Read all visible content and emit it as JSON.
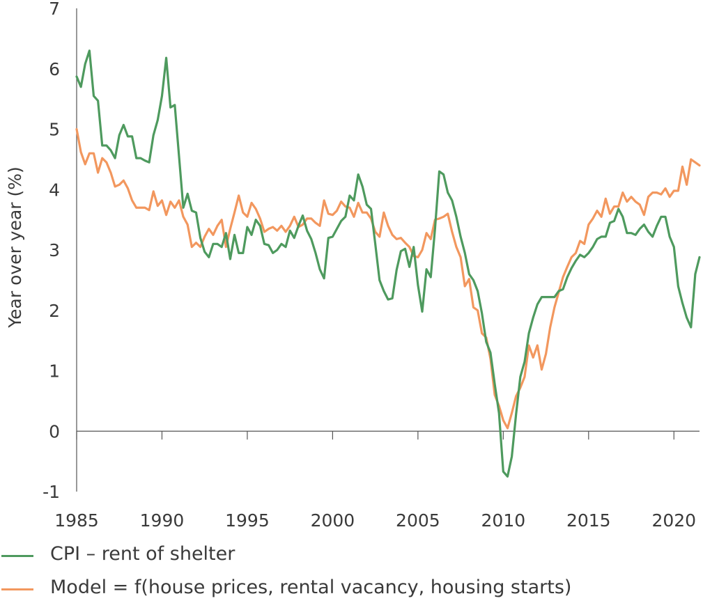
{
  "chart_data": {
    "type": "line",
    "title": "",
    "xlabel": "",
    "ylabel": "Year over year (%)",
    "xlim": [
      1985,
      2021.5
    ],
    "ylim": [
      -1,
      7
    ],
    "xticks": [
      1985,
      1990,
      1995,
      2000,
      2005,
      2010,
      2015,
      2020
    ],
    "yticks": [
      -1,
      0,
      1,
      2,
      3,
      4,
      5,
      6,
      7
    ],
    "series": [
      {
        "name": "CPI – rent of shelter",
        "color": "#4e9a5e",
        "points": [
          [
            1985.0,
            5.87
          ],
          [
            1985.25,
            5.7
          ],
          [
            1985.5,
            6.08
          ],
          [
            1985.75,
            6.3
          ],
          [
            1986.0,
            5.55
          ],
          [
            1986.25,
            5.47
          ],
          [
            1986.5,
            4.73
          ],
          [
            1986.75,
            4.73
          ],
          [
            1987.0,
            4.65
          ],
          [
            1987.25,
            4.52
          ],
          [
            1987.5,
            4.9
          ],
          [
            1987.75,
            5.07
          ],
          [
            1988.0,
            4.88
          ],
          [
            1988.25,
            4.88
          ],
          [
            1988.5,
            4.52
          ],
          [
            1988.75,
            4.52
          ],
          [
            1989.0,
            4.48
          ],
          [
            1989.25,
            4.45
          ],
          [
            1989.5,
            4.9
          ],
          [
            1989.75,
            5.15
          ],
          [
            1990.0,
            5.55
          ],
          [
            1990.25,
            6.18
          ],
          [
            1990.5,
            5.36
          ],
          [
            1990.75,
            5.4
          ],
          [
            1991.0,
            4.55
          ],
          [
            1991.25,
            3.7
          ],
          [
            1991.5,
            3.93
          ],
          [
            1991.75,
            3.65
          ],
          [
            1992.0,
            3.62
          ],
          [
            1992.25,
            3.2
          ],
          [
            1992.5,
            2.97
          ],
          [
            1992.75,
            2.88
          ],
          [
            1993.0,
            3.1
          ],
          [
            1993.25,
            3.1
          ],
          [
            1993.5,
            3.05
          ],
          [
            1993.75,
            3.28
          ],
          [
            1994.0,
            2.85
          ],
          [
            1994.25,
            3.25
          ],
          [
            1994.5,
            2.95
          ],
          [
            1994.75,
            2.95
          ],
          [
            1995.0,
            3.38
          ],
          [
            1995.25,
            3.25
          ],
          [
            1995.5,
            3.5
          ],
          [
            1995.75,
            3.4
          ],
          [
            1996.0,
            3.1
          ],
          [
            1996.25,
            3.08
          ],
          [
            1996.5,
            2.95
          ],
          [
            1996.75,
            3.0
          ],
          [
            1997.0,
            3.1
          ],
          [
            1997.25,
            3.05
          ],
          [
            1997.5,
            3.32
          ],
          [
            1997.75,
            3.2
          ],
          [
            1998.0,
            3.4
          ],
          [
            1998.25,
            3.57
          ],
          [
            1998.5,
            3.32
          ],
          [
            1998.75,
            3.18
          ],
          [
            1999.0,
            2.95
          ],
          [
            1999.25,
            2.68
          ],
          [
            1999.5,
            2.53
          ],
          [
            1999.75,
            3.2
          ],
          [
            2000.0,
            3.22
          ],
          [
            2000.25,
            3.35
          ],
          [
            2000.5,
            3.48
          ],
          [
            2000.75,
            3.55
          ],
          [
            2001.0,
            3.9
          ],
          [
            2001.25,
            3.82
          ],
          [
            2001.5,
            4.25
          ],
          [
            2001.75,
            4.05
          ],
          [
            2002.0,
            3.75
          ],
          [
            2002.25,
            3.68
          ],
          [
            2002.5,
            3.1
          ],
          [
            2002.75,
            2.5
          ],
          [
            2003.0,
            2.32
          ],
          [
            2003.25,
            2.18
          ],
          [
            2003.5,
            2.2
          ],
          [
            2003.75,
            2.67
          ],
          [
            2004.0,
            2.98
          ],
          [
            2004.25,
            3.02
          ],
          [
            2004.5,
            2.72
          ],
          [
            2004.75,
            3.05
          ],
          [
            2005.0,
            2.42
          ],
          [
            2005.25,
            1.98
          ],
          [
            2005.5,
            2.68
          ],
          [
            2005.75,
            2.55
          ],
          [
            2006.0,
            3.35
          ],
          [
            2006.25,
            4.3
          ],
          [
            2006.5,
            4.25
          ],
          [
            2006.75,
            3.95
          ],
          [
            2007.0,
            3.82
          ],
          [
            2007.25,
            3.55
          ],
          [
            2007.5,
            3.22
          ],
          [
            2007.75,
            2.95
          ],
          [
            2008.0,
            2.6
          ],
          [
            2008.25,
            2.5
          ],
          [
            2008.5,
            2.32
          ],
          [
            2008.75,
            1.95
          ],
          [
            2009.0,
            1.48
          ],
          [
            2009.25,
            1.3
          ],
          [
            2009.5,
            0.78
          ],
          [
            2009.75,
            0.3
          ],
          [
            2010.0,
            -0.67
          ],
          [
            2010.25,
            -0.75
          ],
          [
            2010.5,
            -0.42
          ],
          [
            2010.75,
            0.28
          ],
          [
            2011.0,
            0.9
          ],
          [
            2011.25,
            1.15
          ],
          [
            2011.5,
            1.62
          ],
          [
            2011.75,
            1.88
          ],
          [
            2012.0,
            2.1
          ],
          [
            2012.25,
            2.22
          ],
          [
            2012.5,
            2.22
          ],
          [
            2012.75,
            2.22
          ],
          [
            2013.0,
            2.22
          ],
          [
            2013.25,
            2.32
          ],
          [
            2013.5,
            2.35
          ],
          [
            2013.75,
            2.55
          ],
          [
            2014.0,
            2.7
          ],
          [
            2014.25,
            2.82
          ],
          [
            2014.5,
            2.92
          ],
          [
            2014.75,
            2.88
          ],
          [
            2015.0,
            2.95
          ],
          [
            2015.25,
            3.05
          ],
          [
            2015.5,
            3.18
          ],
          [
            2015.75,
            3.22
          ],
          [
            2016.0,
            3.22
          ],
          [
            2016.25,
            3.45
          ],
          [
            2016.5,
            3.48
          ],
          [
            2016.75,
            3.68
          ],
          [
            2017.0,
            3.55
          ],
          [
            2017.25,
            3.28
          ],
          [
            2017.5,
            3.28
          ],
          [
            2017.75,
            3.25
          ],
          [
            2018.0,
            3.35
          ],
          [
            2018.25,
            3.42
          ],
          [
            2018.5,
            3.3
          ],
          [
            2018.75,
            3.22
          ],
          [
            2019.0,
            3.4
          ],
          [
            2019.25,
            3.55
          ],
          [
            2019.5,
            3.55
          ],
          [
            2019.75,
            3.22
          ],
          [
            2020.0,
            3.05
          ],
          [
            2020.25,
            2.4
          ],
          [
            2020.5,
            2.12
          ],
          [
            2020.75,
            1.88
          ],
          [
            2021.0,
            1.72
          ],
          [
            2021.25,
            2.6
          ],
          [
            2021.5,
            2.88
          ]
        ]
      },
      {
        "name": "Model = f(house prices, rental vacancy, housing starts)",
        "color": "#f2975e",
        "points": [
          [
            1985.0,
            5.0
          ],
          [
            1985.25,
            4.62
          ],
          [
            1985.5,
            4.42
          ],
          [
            1985.75,
            4.6
          ],
          [
            1986.0,
            4.6
          ],
          [
            1986.25,
            4.28
          ],
          [
            1986.5,
            4.52
          ],
          [
            1986.75,
            4.45
          ],
          [
            1987.0,
            4.28
          ],
          [
            1987.25,
            4.05
          ],
          [
            1987.5,
            4.08
          ],
          [
            1987.75,
            4.15
          ],
          [
            1988.0,
            4.02
          ],
          [
            1988.25,
            3.82
          ],
          [
            1988.5,
            3.7
          ],
          [
            1988.75,
            3.7
          ],
          [
            1989.0,
            3.7
          ],
          [
            1989.25,
            3.66
          ],
          [
            1989.5,
            3.97
          ],
          [
            1989.75,
            3.73
          ],
          [
            1990.0,
            3.82
          ],
          [
            1990.25,
            3.58
          ],
          [
            1990.5,
            3.8
          ],
          [
            1990.75,
            3.7
          ],
          [
            1991.0,
            3.82
          ],
          [
            1991.25,
            3.55
          ],
          [
            1991.5,
            3.42
          ],
          [
            1991.75,
            3.05
          ],
          [
            1992.0,
            3.12
          ],
          [
            1992.25,
            3.05
          ],
          [
            1992.5,
            3.22
          ],
          [
            1992.75,
            3.35
          ],
          [
            1993.0,
            3.25
          ],
          [
            1993.25,
            3.4
          ],
          [
            1993.5,
            3.5
          ],
          [
            1993.75,
            3.05
          ],
          [
            1994.0,
            3.35
          ],
          [
            1994.25,
            3.62
          ],
          [
            1994.5,
            3.9
          ],
          [
            1994.75,
            3.62
          ],
          [
            1995.0,
            3.55
          ],
          [
            1995.25,
            3.78
          ],
          [
            1995.5,
            3.68
          ],
          [
            1995.75,
            3.52
          ],
          [
            1996.0,
            3.3
          ],
          [
            1996.25,
            3.35
          ],
          [
            1996.5,
            3.38
          ],
          [
            1996.75,
            3.32
          ],
          [
            1997.0,
            3.4
          ],
          [
            1997.25,
            3.3
          ],
          [
            1997.5,
            3.4
          ],
          [
            1997.75,
            3.55
          ],
          [
            1998.0,
            3.38
          ],
          [
            1998.25,
            3.42
          ],
          [
            1998.5,
            3.52
          ],
          [
            1998.75,
            3.52
          ],
          [
            1999.0,
            3.45
          ],
          [
            1999.25,
            3.4
          ],
          [
            1999.5,
            3.82
          ],
          [
            1999.75,
            3.6
          ],
          [
            2000.0,
            3.58
          ],
          [
            2000.25,
            3.65
          ],
          [
            2000.5,
            3.8
          ],
          [
            2000.75,
            3.72
          ],
          [
            2001.0,
            3.7
          ],
          [
            2001.25,
            3.55
          ],
          [
            2001.5,
            3.78
          ],
          [
            2001.75,
            3.62
          ],
          [
            2002.0,
            3.62
          ],
          [
            2002.25,
            3.52
          ],
          [
            2002.5,
            3.3
          ],
          [
            2002.75,
            3.22
          ],
          [
            2003.0,
            3.62
          ],
          [
            2003.25,
            3.4
          ],
          [
            2003.5,
            3.25
          ],
          [
            2003.75,
            3.18
          ],
          [
            2004.0,
            3.2
          ],
          [
            2004.25,
            3.12
          ],
          [
            2004.5,
            3.05
          ],
          [
            2004.75,
            2.9
          ],
          [
            2005.0,
            2.88
          ],
          [
            2005.25,
            3.0
          ],
          [
            2005.5,
            3.28
          ],
          [
            2005.75,
            3.18
          ],
          [
            2006.0,
            3.5
          ],
          [
            2006.25,
            3.52
          ],
          [
            2006.5,
            3.55
          ],
          [
            2006.75,
            3.6
          ],
          [
            2007.0,
            3.3
          ],
          [
            2007.25,
            3.05
          ],
          [
            2007.5,
            2.88
          ],
          [
            2007.75,
            2.4
          ],
          [
            2008.0,
            2.52
          ],
          [
            2008.25,
            2.05
          ],
          [
            2008.5,
            2.0
          ],
          [
            2008.75,
            1.62
          ],
          [
            2009.0,
            1.55
          ],
          [
            2009.25,
            1.2
          ],
          [
            2009.5,
            0.6
          ],
          [
            2009.75,
            0.42
          ],
          [
            2010.0,
            0.18
          ],
          [
            2010.25,
            0.05
          ],
          [
            2010.5,
            0.3
          ],
          [
            2010.75,
            0.58
          ],
          [
            2011.0,
            0.72
          ],
          [
            2011.25,
            0.9
          ],
          [
            2011.5,
            1.42
          ],
          [
            2011.75,
            1.22
          ],
          [
            2012.0,
            1.42
          ],
          [
            2012.25,
            1.02
          ],
          [
            2012.5,
            1.28
          ],
          [
            2012.75,
            1.72
          ],
          [
            2013.0,
            2.05
          ],
          [
            2013.25,
            2.3
          ],
          [
            2013.5,
            2.55
          ],
          [
            2013.75,
            2.72
          ],
          [
            2014.0,
            2.88
          ],
          [
            2014.25,
            2.95
          ],
          [
            2014.5,
            3.15
          ],
          [
            2014.75,
            3.1
          ],
          [
            2015.0,
            3.42
          ],
          [
            2015.25,
            3.52
          ],
          [
            2015.5,
            3.65
          ],
          [
            2015.75,
            3.55
          ],
          [
            2016.0,
            3.85
          ],
          [
            2016.25,
            3.6
          ],
          [
            2016.5,
            3.72
          ],
          [
            2016.75,
            3.72
          ],
          [
            2017.0,
            3.95
          ],
          [
            2017.25,
            3.8
          ],
          [
            2017.5,
            3.88
          ],
          [
            2017.75,
            3.8
          ],
          [
            2018.0,
            3.75
          ],
          [
            2018.25,
            3.58
          ],
          [
            2018.5,
            3.88
          ],
          [
            2018.75,
            3.95
          ],
          [
            2019.0,
            3.95
          ],
          [
            2019.25,
            3.92
          ],
          [
            2019.5,
            4.02
          ],
          [
            2019.75,
            3.88
          ],
          [
            2020.0,
            3.98
          ],
          [
            2020.25,
            3.98
          ],
          [
            2020.5,
            4.38
          ],
          [
            2020.75,
            4.08
          ],
          [
            2021.0,
            4.5
          ],
          [
            2021.25,
            4.45
          ],
          [
            2021.5,
            4.4
          ]
        ]
      }
    ]
  }
}
